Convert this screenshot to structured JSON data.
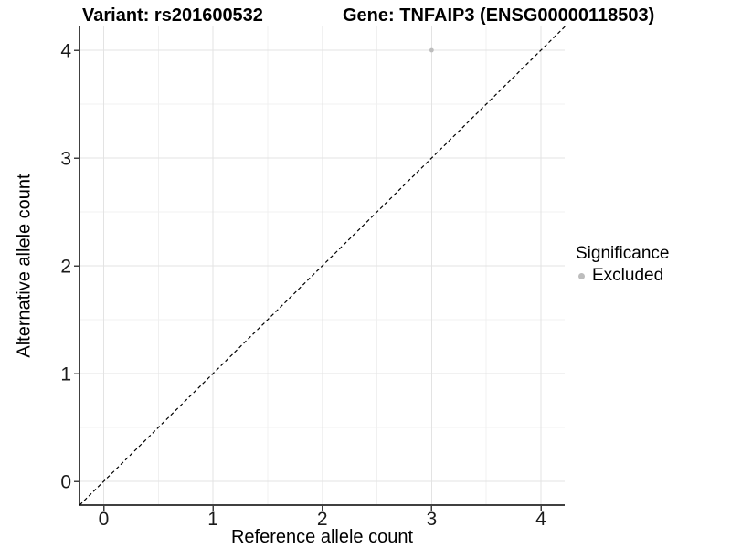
{
  "titles": {
    "left": "Variant: rs201600532",
    "right": "Gene: TNFAIP3 (ENSG00000118503)"
  },
  "axes": {
    "x": {
      "label": "Reference allele count",
      "ticks": [
        0,
        1,
        2,
        3,
        4
      ]
    },
    "y": {
      "label": "Alternative allele count",
      "ticks": [
        0,
        1,
        2,
        3,
        4
      ]
    }
  },
  "legend": {
    "title": "Significance",
    "items": [
      {
        "label": "Excluded",
        "color": "#bdbdbd",
        "marker": "circle"
      }
    ]
  },
  "colors": {
    "background": "#ffffff",
    "point": "#bdbdbd",
    "grid_major": "#e3e3e3",
    "grid_minor": "#f0f0f0",
    "axis_line": "#404040",
    "tick_mark": "#404040",
    "tick_text": "#1a1a1a",
    "identity_line": "#000000",
    "text": "#000000"
  },
  "chart_data": {
    "type": "scatter",
    "title": "Variant: rs201600532 | Gene: TNFAIP3 (ENSG00000118503)",
    "xlabel": "Reference allele count",
    "ylabel": "Alternative allele count",
    "xlim": [
      -0.22,
      4.22
    ],
    "ylim": [
      -0.22,
      4.22
    ],
    "x_ticks": [
      0,
      1,
      2,
      3,
      4
    ],
    "y_ticks": [
      0,
      1,
      2,
      3,
      4
    ],
    "grid": "on",
    "minor_grid": "on",
    "legend_position": "right",
    "series": [
      {
        "name": "Excluded",
        "color": "#bdbdbd",
        "points": [
          {
            "x": 3,
            "y": 4
          }
        ]
      }
    ],
    "reference_line": {
      "type": "identity y=x",
      "style": "dashed",
      "color": "#000000",
      "from": [
        -0.22,
        -0.22
      ],
      "to": [
        4.22,
        4.22
      ]
    }
  }
}
